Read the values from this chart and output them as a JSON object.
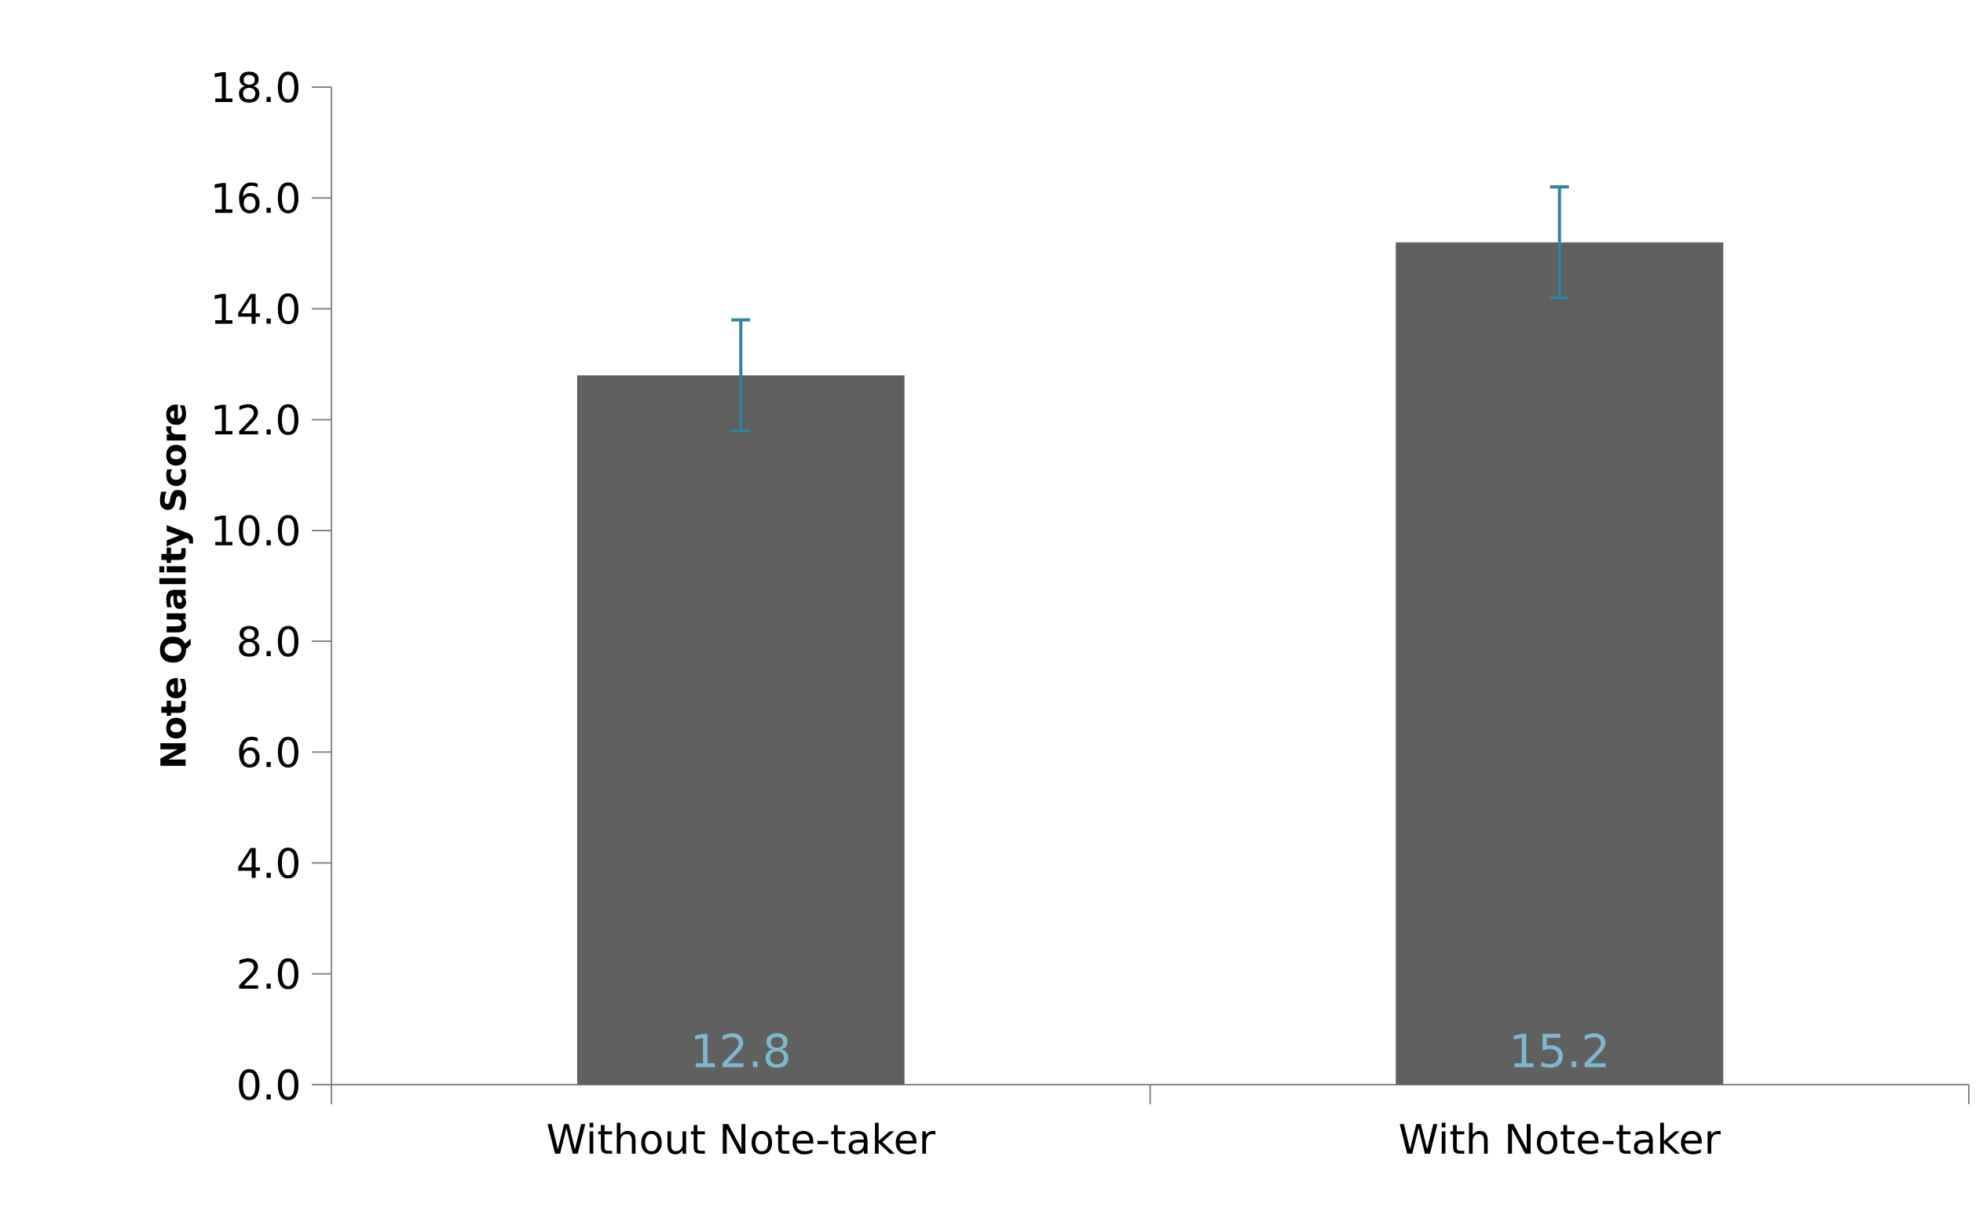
{
  "chart_data": {
    "type": "bar",
    "ylabel": "Note Quality Score",
    "categories": [
      "Without Note-taker",
      "With Note-taker"
    ],
    "values": [
      12.8,
      15.2
    ],
    "errors": [
      1.0,
      1.0
    ],
    "color": "#606060",
    "data_labels": true,
    "ylim": [
      0,
      18
    ],
    "yticks": [
      {
        "value": 0,
        "label": "0.0"
      },
      {
        "value": 2,
        "label": "2.0"
      },
      {
        "value": 4,
        "label": "4.0"
      },
      {
        "value": 6,
        "label": "6.0"
      },
      {
        "value": 8,
        "label": "8.0"
      },
      {
        "value": 10,
        "label": "10.0"
      },
      {
        "value": 12,
        "label": "12.0"
      },
      {
        "value": 14,
        "label": "14.0"
      },
      {
        "value": 16,
        "label": "16.0"
      },
      {
        "value": 18,
        "label": "18.0"
      }
    ],
    "grid": false
  }
}
